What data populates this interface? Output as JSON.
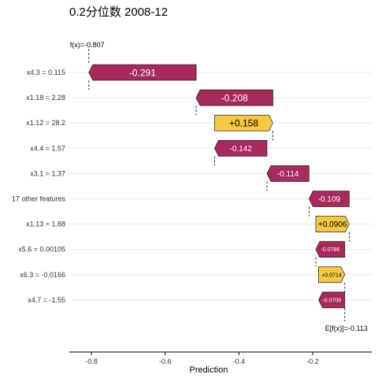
{
  "chart_data": {
    "type": "waterfall",
    "title": "0.2分位数 2008-12",
    "xlabel": "Prediction",
    "xlim": [
      -0.86,
      -0.04
    ],
    "xticks": [
      {
        "value": -0.8,
        "label": "-0.8"
      },
      {
        "value": -0.6,
        "label": "-0.6"
      },
      {
        "value": -0.4,
        "label": "-0.4"
      },
      {
        "value": -0.2,
        "label": "-0.2"
      }
    ],
    "fx_label": "f(x)=-0.807",
    "fx_value": -0.807,
    "base_label": "E[f(x)]=-0.113",
    "base_value": -0.113,
    "colors": {
      "positive": "#f5c842",
      "negative": "#a8295c",
      "grid": "#e8e8e8"
    },
    "features": [
      {
        "label": "x4.3 = 0.115",
        "value": -0.291,
        "text": "-0.291",
        "start": -0.516,
        "end": -0.807
      },
      {
        "label": "x1.18 = 2.28",
        "value": -0.208,
        "text": "-0.208",
        "start": -0.308,
        "end": -0.516
      },
      {
        "label": "x1.12 = 28.2",
        "value": 0.158,
        "text": "+0.158",
        "start": -0.466,
        "end": -0.308
      },
      {
        "label": "x4.4 = 1.57",
        "value": -0.142,
        "text": "-0.142",
        "start": -0.324,
        "end": -0.466
      },
      {
        "label": "x3.1 = 1.37",
        "value": -0.114,
        "text": "-0.114",
        "start": -0.21,
        "end": -0.324
      },
      {
        "label": "17 other features",
        "value": -0.109,
        "text": "-0.109",
        "start": -0.101,
        "end": -0.21
      },
      {
        "label": "x1.13 = 1.88",
        "value": 0.0906,
        "text": "+0.0906",
        "start": -0.1916,
        "end": -0.101
      },
      {
        "label": "x5.6 = 0.00105",
        "value": -0.0786,
        "text": "-0.0786",
        "start": -0.113,
        "end": -0.1916
      },
      {
        "label": "x6.3 = -0.0166",
        "value": 0.0714,
        "text": "+0.0714",
        "start": -0.1844,
        "end": -0.113
      },
      {
        "label": "x4.7 = -1.55",
        "value": -0.0708,
        "text": "-0.0708",
        "start": -0.113,
        "end": -0.1838
      }
    ]
  }
}
